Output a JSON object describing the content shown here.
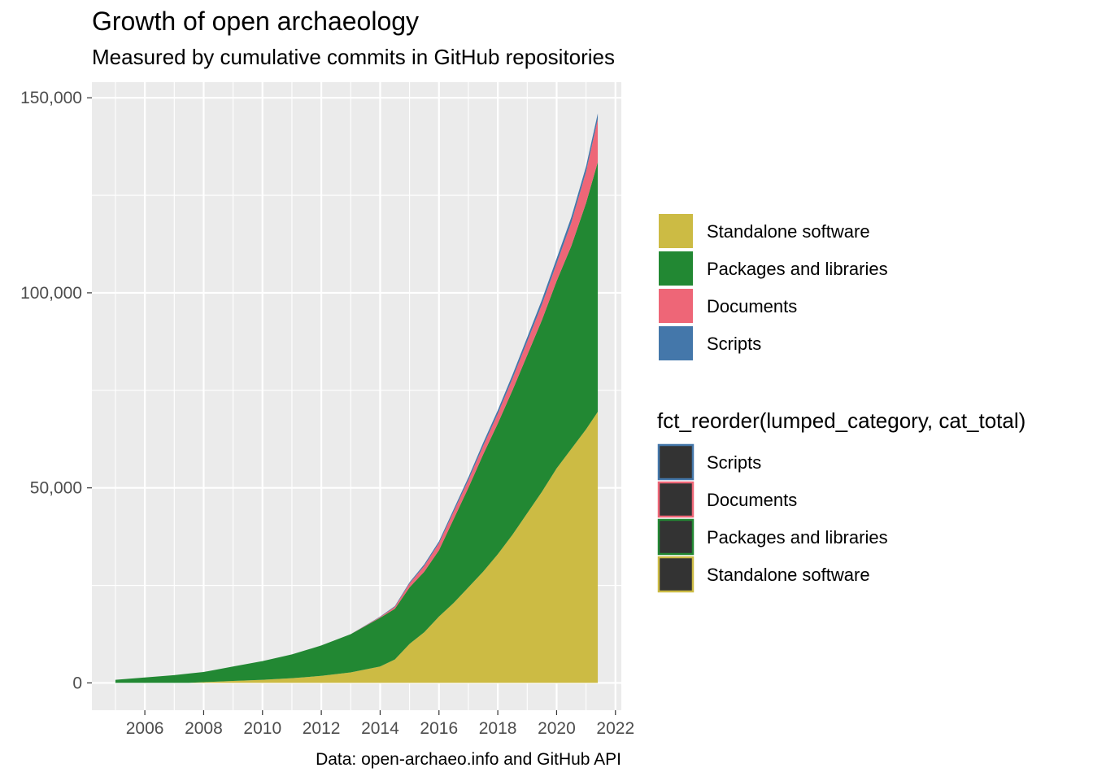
{
  "chart_data": {
    "type": "area",
    "stacked": true,
    "title": "Growth of open archaeology",
    "subtitle": "Measured by cumulative commits in GitHub repositories",
    "caption": "Data: open-archaeo.info and GitHub API",
    "xlabel": "",
    "ylabel": "",
    "xlim": [
      2004.2,
      2022.2
    ],
    "ylim": [
      -7000,
      154000
    ],
    "x_ticks": [
      2006,
      2008,
      2010,
      2012,
      2014,
      2016,
      2018,
      2020,
      2022
    ],
    "x_tick_labels": [
      "2006",
      "2008",
      "2010",
      "2012",
      "2014",
      "2016",
      "2018",
      "2020",
      "2022"
    ],
    "y_ticks": [
      0,
      50000,
      100000,
      150000
    ],
    "y_tick_labels": [
      "0",
      "50,000",
      "100,000",
      "150,000"
    ],
    "grid": true,
    "legend_placement": "right",
    "x": [
      2005,
      2006,
      2007,
      2007.5,
      2008,
      2009,
      2010,
      2011,
      2012,
      2013,
      2014,
      2014.5,
      2015,
      2015.5,
      2016,
      2016.5,
      2017,
      2017.5,
      2018,
      2018.5,
      2019,
      2019.5,
      2020,
      2020.5,
      2021,
      2021.4
    ],
    "series": [
      {
        "name": "Standalone software",
        "color": "#CCBB44",
        "values": [
          0,
          0,
          0,
          0,
          200,
          500,
          800,
          1200,
          1800,
          2700,
          4200,
          6000,
          10000,
          13000,
          17000,
          20500,
          24500,
          28500,
          33000,
          38000,
          43500,
          49000,
          55000,
          60000,
          65000,
          69500
        ]
      },
      {
        "name": "Packages and libraries",
        "color": "#228833",
        "values": [
          800,
          1400,
          2000,
          2400,
          2600,
          3700,
          4800,
          6100,
          7800,
          9800,
          12500,
          13000,
          14500,
          15500,
          17000,
          21500,
          25500,
          30000,
          33500,
          37000,
          40500,
          44000,
          48000,
          52000,
          58000,
          64000
        ]
      },
      {
        "name": "Documents",
        "color": "#EE6677",
        "values": [
          0,
          0,
          0,
          0,
          0,
          0,
          0,
          0,
          0,
          0,
          200,
          500,
          1000,
          1500,
          1800,
          1900,
          2000,
          2200,
          2500,
          3000,
          3500,
          4000,
          4500,
          6000,
          8000,
          11000
        ]
      },
      {
        "name": "Scripts",
        "color": "#4477AA",
        "values": [
          0,
          0,
          0,
          0,
          0,
          0,
          0,
          0,
          0,
          0,
          100,
          200,
          300,
          400,
          500,
          600,
          700,
          800,
          900,
          1000,
          1100,
          1200,
          1300,
          1400,
          1400,
          1500
        ]
      }
    ],
    "legends": [
      {
        "title": "",
        "style": "fill",
        "entries": [
          {
            "label": "Standalone software",
            "fill": "#CCBB44",
            "stroke": "#CCBB44"
          },
          {
            "label": "Packages and libraries",
            "fill": "#228833",
            "stroke": "#228833"
          },
          {
            "label": "Documents",
            "fill": "#EE6677",
            "stroke": "#EE6677"
          },
          {
            "label": "Scripts",
            "fill": "#4477AA",
            "stroke": "#4477AA"
          }
        ]
      },
      {
        "title": "fct_reorder(lumped_category, cat_total)",
        "style": "outline",
        "entries": [
          {
            "label": "Scripts",
            "fill": "#333333",
            "stroke": "#4477AA"
          },
          {
            "label": "Documents",
            "fill": "#333333",
            "stroke": "#EE6677"
          },
          {
            "label": "Packages and libraries",
            "fill": "#333333",
            "stroke": "#228833"
          },
          {
            "label": "Standalone software",
            "fill": "#333333",
            "stroke": "#CCBB44"
          }
        ]
      }
    ],
    "panel_background": "#EBEBEB",
    "gridline_color": "#FFFFFF"
  }
}
